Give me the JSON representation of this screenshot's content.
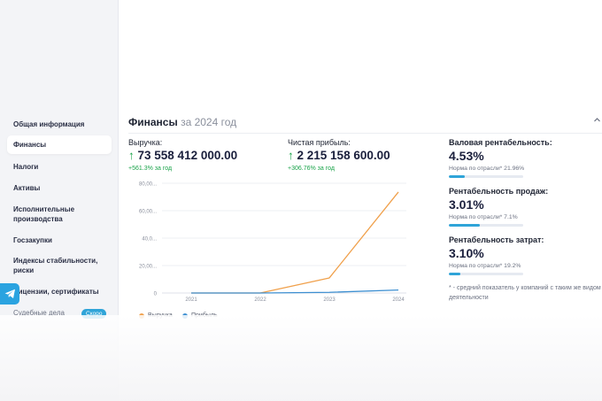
{
  "sidebar": {
    "items": [
      {
        "label": "Общая информация"
      },
      {
        "label": "Финансы"
      },
      {
        "label": "Налоги"
      },
      {
        "label": "Активы"
      },
      {
        "label": "Исполнительные производства"
      },
      {
        "label": "Госзакупки"
      },
      {
        "label": "Индексы стабильности, риски"
      },
      {
        "label": "Лицензии, сертификаты"
      },
      {
        "label": "Судебные дела"
      }
    ],
    "badge": "Скоро",
    "active_index": 1
  },
  "section": {
    "title": "Финансы",
    "subtitle": "за 2024 год"
  },
  "kpis": {
    "revenue": {
      "label": "Выручка:",
      "value": "73 558 412 000.00",
      "change": "+561.3% за год"
    },
    "profit": {
      "label": "Чистая прибыль:",
      "value": "2 215 158 600.00",
      "change": "+306.76% за год"
    }
  },
  "ratios": {
    "gross": {
      "label": "Валовая рентабельность:",
      "value": "4.53%",
      "norm": "Норма по отрасли* 21.96%",
      "fill": 0.21
    },
    "sales": {
      "label": "Рентабельность продаж:",
      "value": "3.01%",
      "norm": "Норма по отрасли* 7.1%",
      "fill": 0.42
    },
    "costs": {
      "label": "Рентабельность затрат:",
      "value": "3.10%",
      "norm": "Норма по отрасли* 19.2%",
      "fill": 0.16
    }
  },
  "footnote": "* - средний показатель у компаний с таким же видом деятельности",
  "colors": {
    "revenue": "#f0a04b",
    "profit": "#3d8fd1",
    "accent": "#2fa4d8",
    "positive": "#1aa34a"
  },
  "chart_data": {
    "type": "line",
    "x": [
      "2021",
      "2022",
      "2023",
      "2024"
    ],
    "yticks": [
      "0",
      "20,00...",
      "40,0...",
      "60,00...",
      "80,00..."
    ],
    "ylim": [
      0,
      80
    ],
    "series": [
      {
        "name": "Выручка",
        "values": [
          0,
          0,
          11,
          73.6
        ]
      },
      {
        "name": "Прибыль",
        "values": [
          0,
          0,
          0.5,
          2.2
        ]
      }
    ],
    "legend": "bottom-left",
    "grid": true
  }
}
